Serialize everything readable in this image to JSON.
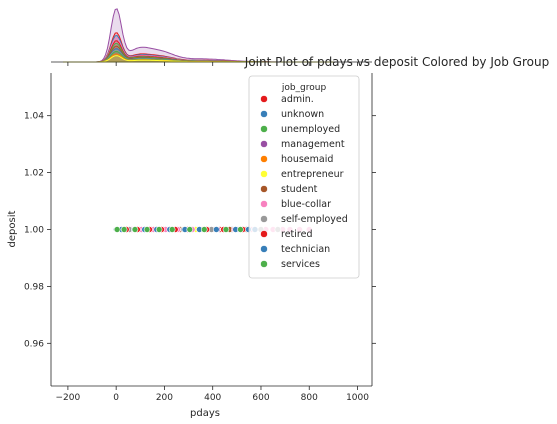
{
  "chart_data": {
    "type": "scatter",
    "title": "Joint Plot of pdays vs deposit Colored by Job Group",
    "xlabel": "pdays",
    "ylabel": "deposit",
    "xlim": [
      -270,
      1060
    ],
    "ylim": [
      0.945,
      1.055
    ],
    "xticks": [
      -200,
      0,
      200,
      400,
      600,
      800,
      1000
    ],
    "xtick_labels": [
      "−200",
      "0",
      "200",
      "400",
      "600",
      "800",
      "1000"
    ],
    "yticks": [
      0.96,
      0.98,
      1.0,
      1.02,
      1.04
    ],
    "ytick_labels": [
      "0.96",
      "0.98",
      "1.00",
      "1.02",
      "1.04"
    ],
    "grid": false,
    "legend_title": "job_group",
    "legend_position": "upper-right",
    "marginal_x": "kde",
    "series": [
      {
        "name": "admin.",
        "color": "#e41a1c",
        "x": [
          0,
          15,
          40,
          80,
          120,
          160,
          200,
          240,
          280,
          320,
          370,
          430,
          510,
          560
        ]
      },
      {
        "name": "unknown",
        "color": "#377eb8",
        "x": [
          5,
          25,
          60,
          100,
          150,
          190,
          230,
          290,
          350,
          410,
          480,
          530
        ]
      },
      {
        "name": "unemployed",
        "color": "#4daf4a",
        "x": [
          10,
          35,
          90,
          140,
          200,
          260,
          310,
          390,
          460
        ]
      },
      {
        "name": "management",
        "color": "#984ea3",
        "x": [
          0,
          20,
          50,
          95,
          130,
          175,
          210,
          250,
          300,
          340,
          420,
          500,
          550
        ]
      },
      {
        "name": "housemaid",
        "color": "#ff7f00",
        "x": [
          8,
          45,
          110,
          180,
          270,
          360
        ]
      },
      {
        "name": "entrepreneur",
        "color": "#ffff33",
        "x": [
          12,
          70,
          160,
          240,
          330,
          450
        ]
      },
      {
        "name": "student",
        "color": "#a65628",
        "x": [
          3,
          30,
          85,
          145,
          195,
          265,
          380,
          470,
          540
        ]
      },
      {
        "name": "blue-collar",
        "color": "#f781bf",
        "x": [
          2,
          28,
          65,
          105,
          155,
          205,
          255,
          315,
          400,
          490,
          560,
          620,
          650,
          690,
          720,
          760,
          800
        ]
      },
      {
        "name": "self-employed",
        "color": "#999999",
        "x": [
          18,
          55,
          125,
          185,
          280,
          395,
          520,
          600,
          670
        ]
      },
      {
        "name": "retired",
        "color": "#e41a1c",
        "x": [
          6,
          42,
          88,
          138,
          188,
          245,
          295,
          375,
          445,
          525
        ]
      },
      {
        "name": "technician",
        "color": "#377eb8",
        "x": [
          1,
          22,
          75,
          118,
          168,
          222,
          285,
          345,
          415,
          495,
          548,
          575
        ]
      },
      {
        "name": "services",
        "color": "#4daf4a",
        "x": [
          4,
          33,
          78,
          128,
          178,
          232,
          305,
          365,
          455,
          515
        ]
      }
    ],
    "y_value": 1.0,
    "kde": [
      {
        "name": "admin.",
        "color": "#e41a1c",
        "peak": 0.55
      },
      {
        "name": "unknown",
        "color": "#377eb8",
        "peak": 0.25
      },
      {
        "name": "unemployed",
        "color": "#4daf4a",
        "peak": 0.2
      },
      {
        "name": "management",
        "color": "#984ea3",
        "peak": 1.0
      },
      {
        "name": "housemaid",
        "color": "#ff7f00",
        "peak": 0.15
      },
      {
        "name": "entrepreneur",
        "color": "#ffff33",
        "peak": 0.12
      },
      {
        "name": "student",
        "color": "#a65628",
        "peak": 0.3
      },
      {
        "name": "blue-collar",
        "color": "#f781bf",
        "peak": 0.45
      },
      {
        "name": "self-employed",
        "color": "#999999",
        "peak": 0.22
      },
      {
        "name": "retired",
        "color": "#e41a1c",
        "peak": 0.4
      },
      {
        "name": "technician",
        "color": "#377eb8",
        "peak": 0.5
      },
      {
        "name": "services",
        "color": "#4daf4a",
        "peak": 0.35
      }
    ]
  }
}
